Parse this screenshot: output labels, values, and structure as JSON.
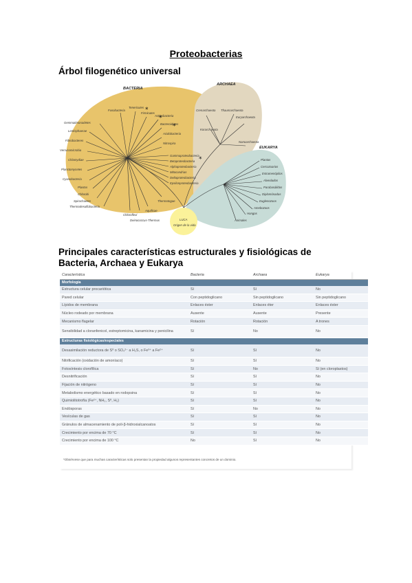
{
  "title": "Proteobacterias",
  "tree_heading": "Árbol filogenético universal",
  "tree": {
    "domains": {
      "bacteria": "BACTERIA",
      "archaea": "ARCHAEA",
      "eukarya": "EUKARYA"
    },
    "bacteria_left_labels": [
      "Gemmatimonadetes",
      "Lentisphaerae",
      "Fibrobacteres",
      "Verrucomicrobia",
      "Chlamydiae",
      "Planctomycetes",
      "Cyanobacteria",
      "Plastos",
      "Chlorobi",
      "Spirochaetes",
      "Thermodesulfobacteria"
    ],
    "bacteria_top_labels": [
      "Fusobacteria",
      "Tenericutes",
      "Firmicutes",
      "Actinobacteria",
      "Bacteroidetes",
      "Acidobacteria",
      "Nitrospira"
    ],
    "bacteria_proteo_labels": [
      "Gammaproteobacteria",
      "Betaproteobacteria",
      "Alphaproteobacteria",
      "Mitocondrias",
      "Deltaproteobacteria",
      "Epsilonproteobacteria"
    ],
    "bacteria_bottom_labels": [
      "Chloroflexi",
      "Deinococcus-Thermus",
      "Aquificae",
      "Thermotogae"
    ],
    "archaea_labels": [
      "Crenarchaeota",
      "Thaumarchaeota",
      "Euryarchaeota",
      "Korarchaeota",
      "Nanoarchaeota"
    ],
    "eukarya_labels": [
      "Plantas",
      "Cercozoarios",
      "Estramenópilos",
      "Alveolados",
      "Parabasálidos",
      "Diplomónadas",
      "Euglenozoos",
      "Amebozoos",
      "Hongos",
      "Animales"
    ],
    "luca_label": "LUCA",
    "luca_sub": "Origen de la vida",
    "star": "*"
  },
  "table_heading": "Principales características estructurales y fisiológicas de Bacteria, Archaea y Eukarya",
  "table": {
    "columns": [
      "Característica",
      "Bacteria",
      "Archaea",
      "Eukarya"
    ],
    "section1": "Morfología",
    "rows1": [
      [
        "Estructura celular procariótica",
        "Sí",
        "Sí",
        "No"
      ],
      [
        "Pared celular",
        "Con peptidoglicano",
        "Sin peptidoglicano",
        "Sin peptidoglicano"
      ],
      [
        "Lípidos de membrana",
        "Enlaces éster",
        "Enlaces éter",
        "Enlaces éster"
      ],
      [
        "Núcleo rodeado por membrana",
        "Ausente",
        "Ausente",
        "Presente"
      ],
      [
        "Mecanismo flagelar",
        "Rotación",
        "Rotación",
        "A trones"
      ],
      [
        "Sensibilidad a cloranfenicol, estreptomicina, kanamicina y penicilina",
        "Sí",
        "No",
        "No"
      ]
    ],
    "section2": "Estructuras fisiológicas/especiales",
    "rows2": [
      [
        "Desasimilación reductora de S⁰ o SO₄²⁻ a H₂S, o Fe³⁺ a Fe²⁺",
        "Sí",
        "Sí",
        "No"
      ],
      [
        "Nitrificación (oxidación de amoníaco)",
        "Sí",
        "Sí",
        "No"
      ],
      [
        "Fotosíntesis clorofílica",
        "Sí",
        "No",
        "Sí (en cloroplastos)"
      ],
      [
        "Desnitrificación",
        "Sí",
        "Sí",
        "No"
      ],
      [
        "Fijación de nitrógeno",
        "Sí",
        "Sí",
        "No"
      ],
      [
        "Metabolismo energético basado en rodopsina",
        "Sí",
        "Sí",
        "No"
      ],
      [
        "Quimiolitotrofía (Fe²⁺, NH₃, S⁰, H₂)",
        "Sí",
        "Sí",
        "No"
      ],
      [
        "Endósporas",
        "Sí",
        "No",
        "No"
      ],
      [
        "Vesículas de gas",
        "Sí",
        "Sí",
        "No"
      ],
      [
        "Gránulos de almacenamiento de poli-β-hidroxialcanoatos",
        "Sí",
        "Sí",
        "No"
      ],
      [
        "Crecimiento por encima de 70 °C",
        "Sí",
        "Sí",
        "No"
      ],
      [
        "Crecimiento por encima de 100 °C",
        "No",
        "Sí",
        "No"
      ]
    ],
    "footnote": "*Obsérvese que para muchas características solo presentan la propiedad algunos representantes concretos de un dominio."
  }
}
